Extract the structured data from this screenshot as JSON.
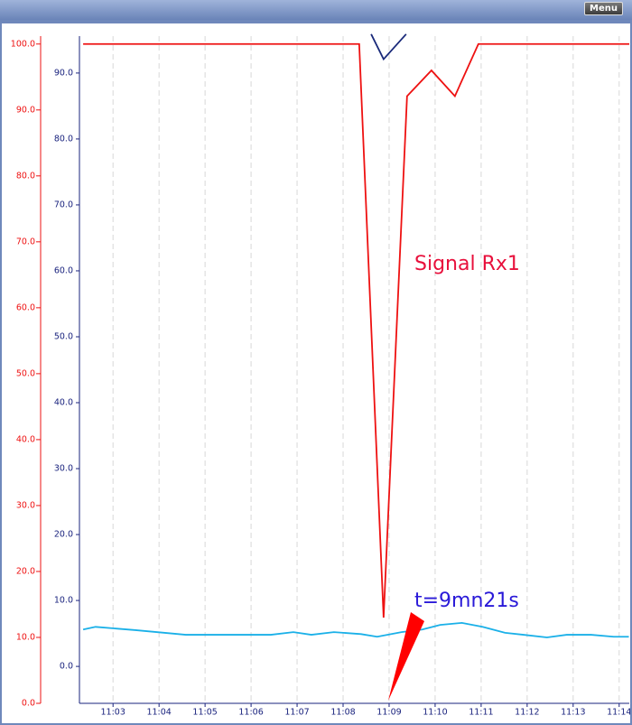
{
  "ui": {
    "menu": "Menu"
  },
  "chart_data": {
    "type": "line",
    "annotations": [
      "Signal Rx1",
      "t=9mn21s"
    ],
    "xlim": [
      2.27,
      14.22
    ],
    "xticks": [
      {
        "value": 3,
        "label": "11:03"
      },
      {
        "value": 4,
        "label": "11:04"
      },
      {
        "value": 5,
        "label": "11:05"
      },
      {
        "value": 6,
        "label": "11:06"
      },
      {
        "value": 7,
        "label": "11:07"
      },
      {
        "value": 8,
        "label": "11:08"
      },
      {
        "value": 9,
        "label": "11:09"
      },
      {
        "value": 10,
        "label": "11:10"
      },
      {
        "value": 11,
        "label": "11:11"
      },
      {
        "value": 12,
        "label": "11:12"
      },
      {
        "value": 13,
        "label": "11:13"
      },
      {
        "value": 14,
        "label": "11:14"
      }
    ],
    "ylim": [
      0,
      101.2
    ],
    "yticks": [
      {
        "value": 0,
        "label": "0.0"
      },
      {
        "value": 10,
        "label": "10.0"
      },
      {
        "value": 20,
        "label": "20.0"
      },
      {
        "value": 30,
        "label": "30.0"
      },
      {
        "value": 40,
        "label": "40.0"
      },
      {
        "value": 50,
        "label": "50.0"
      },
      {
        "value": 60,
        "label": "60.0"
      },
      {
        "value": 70,
        "label": "70.0"
      },
      {
        "value": 80,
        "label": "80.0"
      },
      {
        "value": 90,
        "label": "90.0"
      },
      {
        "value": 100,
        "label": "100.0"
      }
    ],
    "y2lim": [
      -5.6,
      95.6
    ],
    "y2ticks": [
      {
        "value": 0,
        "label": "0.0"
      },
      {
        "value": 10,
        "label": "10.0"
      },
      {
        "value": 20,
        "label": "20.0"
      },
      {
        "value": 30,
        "label": "30.0"
      },
      {
        "value": 40,
        "label": "40.0"
      },
      {
        "value": 50,
        "label": "50.0"
      },
      {
        "value": 60,
        "label": "60.0"
      },
      {
        "value": 70,
        "label": "70.0"
      },
      {
        "value": 80,
        "label": "80.0"
      },
      {
        "value": 90,
        "label": "90.0"
      }
    ],
    "grid": true,
    "y_color": "#ee1111",
    "y2_color": "#1a237e",
    "series": [
      {
        "color": "#ee1111",
        "x": [
          2.35,
          8.35,
          8.88,
          9.39,
          9.92,
          10.43,
          10.94,
          14.22
        ],
        "values": [
          100,
          100,
          13.0,
          92.1,
          96.0,
          92.1,
          100,
          100
        ]
      },
      {
        "color": "#1a2a7a",
        "axis": "y2",
        "x": [
          8.61,
          8.88,
          9.37
        ],
        "values": [
          95.9,
          92.1,
          95.9
        ]
      },
      {
        "color": "#1ab0e8",
        "axis": "y2",
        "x": [
          2.35,
          2.62,
          3.49,
          4.58,
          6.43,
          6.92,
          7.31,
          7.8,
          8.39,
          8.74,
          9.27,
          9.72,
          10.11,
          10.58,
          11.03,
          11.52,
          11.92,
          12.43,
          12.86,
          13.39,
          13.88,
          14.21
        ],
        "values": [
          5.6,
          6.0,
          5.5,
          4.8,
          4.8,
          5.2,
          4.8,
          5.2,
          4.9,
          4.5,
          5.2,
          5.6,
          6.3,
          6.6,
          6.0,
          5.1,
          4.8,
          4.4,
          4.8,
          4.8,
          4.5,
          4.5
        ]
      }
    ]
  }
}
